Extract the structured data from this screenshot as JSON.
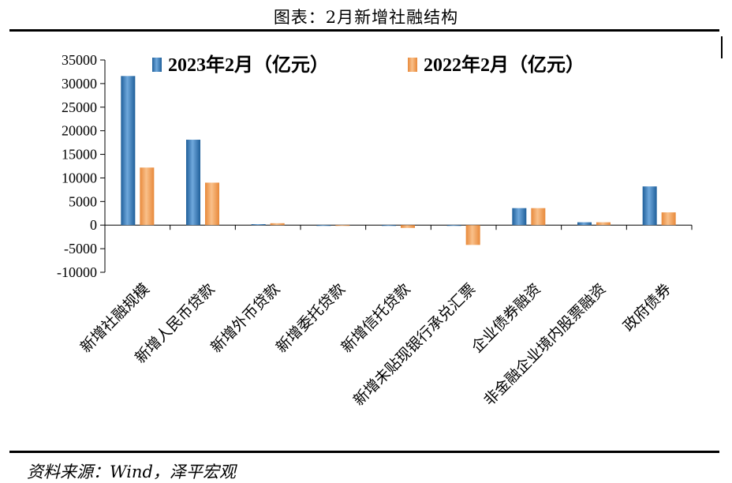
{
  "header": {
    "title": "图表：2月新增社融结构"
  },
  "footer": {
    "source": "资料来源：Wind，泽平宏观"
  },
  "chart_data": {
    "type": "bar",
    "title": "图表：2月新增社融结构",
    "categories": [
      "新增社融规模",
      "新增人民币贷款",
      "新增外币贷款",
      "新增委托贷款",
      "新增信托贷款",
      "新增未贴现银行承兑汇票",
      "企业债券融资",
      "非金融企业境内股票融资",
      "政府债券"
    ],
    "series": [
      {
        "name": "2023年2月（亿元）",
        "color": "#2e75b6",
        "values": [
          31600,
          18100,
          200,
          -100,
          -50,
          -120,
          3600,
          600,
          8200
        ]
      },
      {
        "name": "2022年2月（亿元）",
        "color": "#f4a460",
        "values": [
          12200,
          9000,
          400,
          -80,
          -600,
          -4200,
          3600,
          600,
          2700
        ]
      }
    ],
    "yticks": [
      "35000",
      "30000",
      "25000",
      "20000",
      "15000",
      "10000",
      "5000",
      "0",
      "-5000",
      "-10000"
    ],
    "ylim": [
      -10000,
      35000
    ],
    "grid": false,
    "legend_position": "top"
  }
}
